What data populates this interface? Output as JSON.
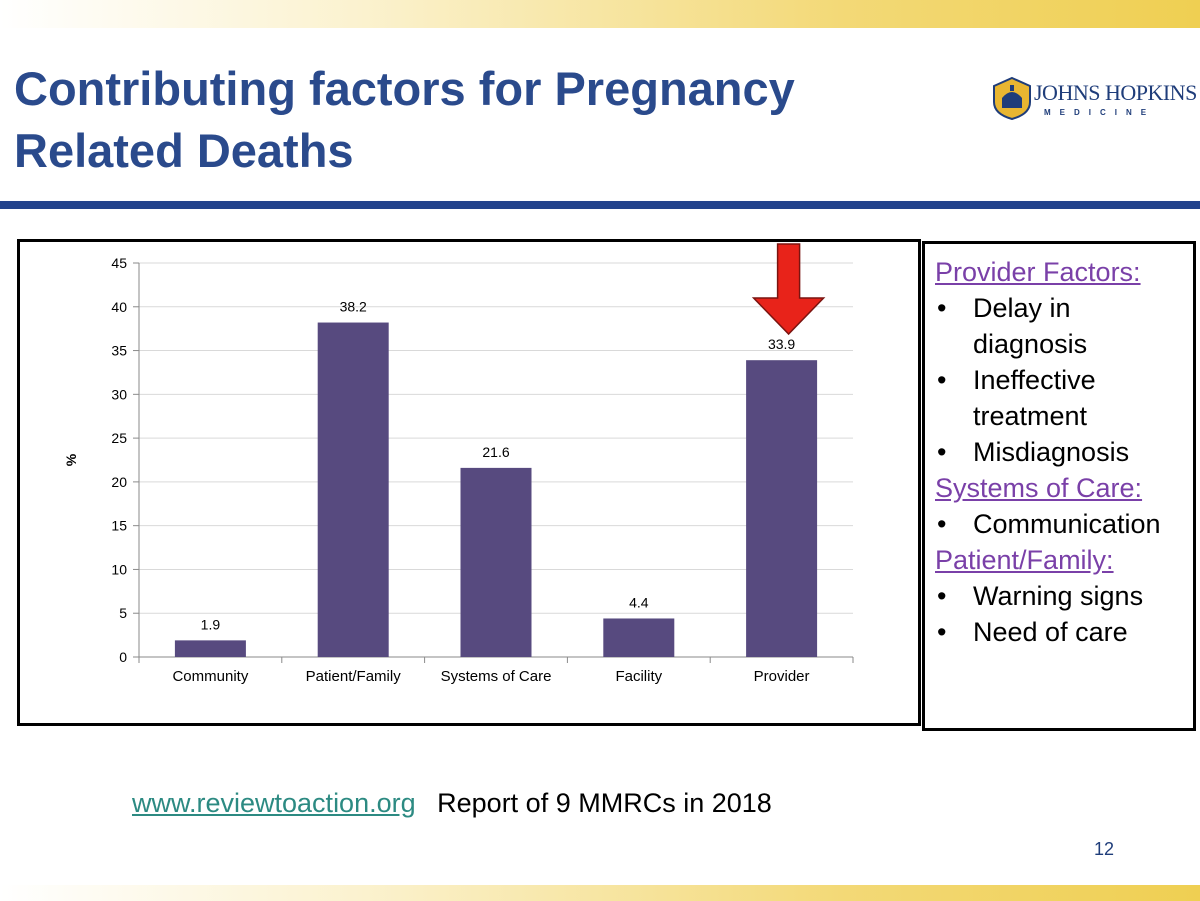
{
  "colors": {
    "title": "#2a4a8c",
    "rule": "#23438c",
    "bar": "#574a7f",
    "arrow": "#e8231a",
    "heading": "#7a40a8",
    "link": "#2c8a82"
  },
  "slide": {
    "title_line1": "Contributing factors for Pregnancy",
    "title_line2": "Related Deaths",
    "logo_name": "JOHNS HOPKINS",
    "logo_sub": "MEDICINE",
    "page_number": "12"
  },
  "chart_data": {
    "type": "bar",
    "categories": [
      "Community",
      "Patient/Family",
      "Systems of Care",
      "Facility",
      "Provider"
    ],
    "values": [
      1.9,
      38.2,
      21.6,
      4.4,
      33.9
    ],
    "value_labels": [
      "1.9",
      "38.2",
      "21.6",
      "4.4",
      "33.9"
    ],
    "ylabel": "%",
    "xlabel": "",
    "title": "",
    "ylim": [
      0,
      45
    ],
    "yticks": [
      0,
      5,
      10,
      15,
      20,
      25,
      30,
      35,
      40,
      45
    ],
    "grid": true,
    "highlight_category": "Provider",
    "highlight_icon": "down-arrow-icon"
  },
  "sidebar": {
    "sections": [
      {
        "heading": "Provider Factors:",
        "items": [
          "Delay in diagnosis",
          "Ineffective treatment",
          "Misdiagnosis"
        ]
      },
      {
        "heading": "Systems of Care:",
        "items": [
          "Communication"
        ]
      },
      {
        "heading": "Patient/Family:",
        "items": [
          "Warning signs",
          "Need of care"
        ]
      }
    ]
  },
  "footer": {
    "link_text": "www.reviewtoaction.org",
    "source_text": "Report of 9 MMRCs in 2018"
  }
}
